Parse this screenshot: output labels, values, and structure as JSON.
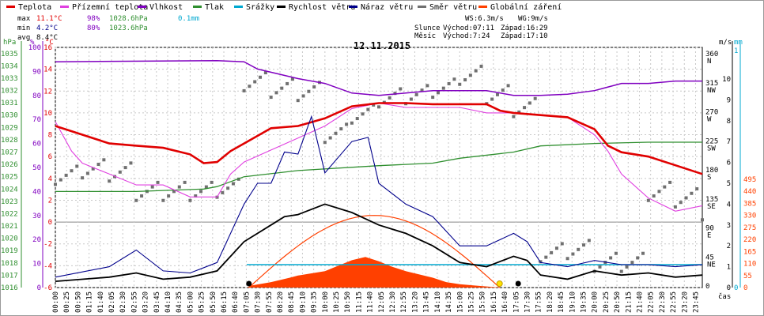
{
  "legend": [
    {
      "label": "Teplota",
      "color": "#e00000"
    },
    {
      "label": "Přízemní teplota",
      "color": "#e040e0"
    },
    {
      "label": "Vlhkost",
      "color": "#8000c0"
    },
    {
      "label": "Tlak",
      "color": "#2f8f2f"
    },
    {
      "label": "Srážky",
      "color": "#00a8d0"
    },
    {
      "label": "Rychlost větru",
      "color": "#000000"
    },
    {
      "label": "Náraz větru",
      "color": "#00008b"
    },
    {
      "label": "Směr větru",
      "color": "#707070"
    },
    {
      "label": "Globální záření",
      "color": "#ff4000"
    }
  ],
  "stats": {
    "max_label": "max",
    "max_temp": "11.1°C",
    "max_hum": "98%",
    "max_press": "1028.6hPa",
    "max_rain": "0.1mm",
    "min_label": "min",
    "min_temp": "4.2°C",
    "min_hum": "80%",
    "min_press": "1023.6hPa",
    "avg_label": "avg",
    "avg_temp": "8.4°C"
  },
  "wind_info": {
    "ws": "WS:6.3m/s",
    "wg": "WG:9m/s"
  },
  "sun_info": {
    "label": "Slunce",
    "rise": "Východ:07:11",
    "set": "Západ:16:29"
  },
  "moon_info": {
    "label": "Měsíc",
    "rise": "Východ:7:24",
    "set": "Západ:17:10"
  },
  "date": "12.11.2015",
  "axis_units": {
    "hpa": "hPa",
    "pct": "%",
    "degc": "°C",
    "ms": "m/s",
    "mm": "mm",
    "wm2": "W/m2",
    "time": "čas"
  },
  "colors": {
    "temp": "#e00000",
    "ground": "#e040e0",
    "hum": "#8000c0",
    "press": "#2f8f2f",
    "rain": "#00a8d0",
    "wind": "#000000",
    "gust": "#00008b",
    "dir": "#707070",
    "solar": "#ff4000",
    "grid": "#c8c8c8"
  },
  "chart_data": {
    "type": "line",
    "title": "12.11.2015",
    "x_range": [
      "00:00",
      "23:59"
    ],
    "y_axes": {
      "pressure_hpa": {
        "ticks": [
          "1016",
          "1017",
          "1018",
          "1019",
          "1020",
          "1021",
          "1022",
          "1023",
          "1024",
          "1025",
          "1026",
          "1027",
          "1028",
          "1029",
          "1030",
          "1031",
          "1032",
          "1033",
          "1034",
          "1035"
        ]
      },
      "humidity_pct": {
        "ticks": [
          "0",
          "10",
          "20",
          "30",
          "40",
          "50",
          "60",
          "70",
          "80",
          "90",
          "100"
        ]
      },
      "temperature_c": {
        "ticks": [
          "-6",
          "-4",
          "-2",
          "0",
          "2",
          "4",
          "6",
          "8",
          "10",
          "12",
          "14",
          "16"
        ]
      },
      "wind_dir": {
        "ticks": [
          "0",
          "45\nNE",
          "90\nE",
          "135\nSE",
          "180\nS",
          "225\nSW",
          "270\nW",
          "315\nNW",
          "360\nN"
        ]
      },
      "wind_ms": {
        "ticks": [
          "0",
          "1",
          "2",
          "3",
          "4",
          "5",
          "6",
          "7",
          "8",
          "9",
          "10"
        ]
      },
      "rain_mm": {
        "ticks": [
          "0",
          "1"
        ]
      },
      "solar_wm2": {
        "ticks": [
          "0",
          "55",
          "110",
          "165",
          "220",
          "275",
          "330",
          "385",
          "440",
          "495"
        ]
      }
    },
    "x_ticks": [
      "00:00",
      "00:25",
      "00:50",
      "01:15",
      "01:40",
      "02:05",
      "02:30",
      "02:55",
      "03:20",
      "03:45",
      "04:10",
      "04:35",
      "05:00",
      "05:25",
      "05:50",
      "06:15",
      "06:40",
      "07:05",
      "07:30",
      "07:55",
      "08:20",
      "08:45",
      "09:10",
      "09:35",
      "10:00",
      "10:25",
      "10:50",
      "11:15",
      "11:40",
      "12:05",
      "12:30",
      "12:55",
      "13:20",
      "13:45",
      "14:10",
      "14:35",
      "15:00",
      "15:25",
      "15:50",
      "16:15",
      "16:40",
      "17:05",
      "17:30",
      "17:55",
      "18:20",
      "18:45",
      "19:10",
      "19:35",
      "20:00",
      "20:25",
      "20:50",
      "21:15",
      "21:40",
      "22:05",
      "22:30",
      "22:55",
      "23:20",
      "23:45"
    ],
    "series": [
      {
        "name": "Teplota",
        "unit": "°C",
        "points": [
          [
            0,
            8.8
          ],
          [
            1,
            8
          ],
          [
            2,
            7.2
          ],
          [
            3,
            7
          ],
          [
            4,
            6.8
          ],
          [
            5,
            6.2
          ],
          [
            5.5,
            5.4
          ],
          [
            6,
            5.5
          ],
          [
            6.5,
            6.5
          ],
          [
            7,
            7.2
          ],
          [
            8,
            8.6
          ],
          [
            9,
            8.8
          ],
          [
            10,
            9.5
          ],
          [
            11,
            10.6
          ],
          [
            12,
            10.9
          ],
          [
            13,
            10.9
          ],
          [
            14,
            10.8
          ],
          [
            15,
            10.8
          ],
          [
            16,
            10.8
          ],
          [
            16.5,
            10.2
          ],
          [
            17,
            10
          ],
          [
            18,
            9.8
          ],
          [
            19,
            9.6
          ],
          [
            20,
            8.5
          ],
          [
            20.5,
            7
          ],
          [
            21,
            6.4
          ],
          [
            22,
            6
          ],
          [
            23,
            5.2
          ],
          [
            24,
            4.4
          ]
        ]
      },
      {
        "name": "Přízemní teplota",
        "unit": "°C",
        "points": [
          [
            0,
            9.2
          ],
          [
            0.6,
            6.5
          ],
          [
            1,
            5.4
          ],
          [
            2,
            4.4
          ],
          [
            3,
            3.4
          ],
          [
            4,
            3.4
          ],
          [
            5,
            2.3
          ],
          [
            6,
            2.3
          ],
          [
            6.5,
            4.4
          ],
          [
            7,
            5.5
          ],
          [
            8,
            6.6
          ],
          [
            9,
            7.7
          ],
          [
            10,
            8.8
          ],
          [
            11,
            10.4
          ],
          [
            12,
            10.9
          ],
          [
            13,
            10.5
          ],
          [
            14,
            10.5
          ],
          [
            15,
            10.5
          ],
          [
            16,
            10
          ],
          [
            17,
            10
          ],
          [
            18,
            9.8
          ],
          [
            19,
            9.6
          ],
          [
            20,
            8
          ],
          [
            20.5,
            6.5
          ],
          [
            21,
            4.4
          ],
          [
            22,
            2.2
          ],
          [
            23,
            1
          ],
          [
            24,
            1.5
          ]
        ]
      },
      {
        "name": "Vlhkost",
        "unit": "%",
        "points": [
          [
            0,
            94
          ],
          [
            6,
            94.5
          ],
          [
            7,
            94
          ],
          [
            7.5,
            91
          ],
          [
            9,
            87
          ],
          [
            10,
            85
          ],
          [
            11,
            81
          ],
          [
            12,
            80
          ],
          [
            13,
            81
          ],
          [
            14,
            82
          ],
          [
            15,
            82
          ],
          [
            16,
            82
          ],
          [
            17,
            80
          ],
          [
            18,
            80
          ],
          [
            19,
            80.5
          ],
          [
            20,
            82
          ],
          [
            21,
            85
          ],
          [
            22,
            85
          ],
          [
            23,
            86
          ],
          [
            24,
            86
          ]
        ]
      },
      {
        "name": "Tlak",
        "unit": "hPa",
        "points": [
          [
            0,
            1023.8
          ],
          [
            3,
            1023.8
          ],
          [
            5.5,
            1024
          ],
          [
            6,
            1024.2
          ],
          [
            7,
            1025
          ],
          [
            9,
            1025.5
          ],
          [
            12,
            1025.9
          ],
          [
            14,
            1026.1
          ],
          [
            15,
            1026.5
          ],
          [
            17,
            1027
          ],
          [
            18,
            1027.5
          ],
          [
            20,
            1027.7
          ],
          [
            22,
            1027.8
          ],
          [
            24,
            1027.8
          ]
        ]
      },
      {
        "name": "Rychlost větru",
        "unit": "m/s",
        "points": [
          [
            0,
            0.3
          ],
          [
            2,
            0.5
          ],
          [
            3,
            0.7
          ],
          [
            4,
            0.4
          ],
          [
            5,
            0.5
          ],
          [
            6,
            0.8
          ],
          [
            7,
            2.2
          ],
          [
            8,
            3
          ],
          [
            8.5,
            3.4
          ],
          [
            9,
            3.5
          ],
          [
            10,
            4
          ],
          [
            11,
            3.6
          ],
          [
            12,
            3
          ],
          [
            13,
            2.6
          ],
          [
            14,
            2
          ],
          [
            15,
            1.2
          ],
          [
            16,
            1
          ],
          [
            17,
            1.5
          ],
          [
            17.5,
            1.3
          ],
          [
            18,
            0.6
          ],
          [
            19,
            0.4
          ],
          [
            20,
            0.8
          ],
          [
            21,
            0.6
          ],
          [
            22,
            0.7
          ],
          [
            23,
            0.5
          ],
          [
            24,
            0.6
          ]
        ]
      },
      {
        "name": "Náraz větru",
        "unit": "m/s",
        "points": [
          [
            0,
            0.5
          ],
          [
            2,
            1
          ],
          [
            3,
            1.8
          ],
          [
            4,
            0.8
          ],
          [
            5,
            0.7
          ],
          [
            6,
            1.2
          ],
          [
            7,
            4
          ],
          [
            7.5,
            5
          ],
          [
            8,
            5
          ],
          [
            8.5,
            6.5
          ],
          [
            9,
            6.4
          ],
          [
            9.5,
            8.2
          ],
          [
            10,
            5.5
          ],
          [
            11,
            7
          ],
          [
            11.6,
            7.2
          ],
          [
            12,
            5
          ],
          [
            13,
            4
          ],
          [
            14,
            3.4
          ],
          [
            15,
            2
          ],
          [
            16,
            2
          ],
          [
            17,
            2.6
          ],
          [
            17.5,
            2.2
          ],
          [
            18,
            1.2
          ],
          [
            19,
            1
          ],
          [
            20,
            1.3
          ],
          [
            21,
            1.1
          ],
          [
            22,
            1.1
          ],
          [
            23,
            1
          ],
          [
            24,
            1.1
          ]
        ]
      },
      {
        "name": "Globální záření",
        "unit": "W/m2",
        "points": [
          [
            7.1,
            0
          ],
          [
            7.3,
            10
          ],
          [
            8,
            25
          ],
          [
            8.7,
            45
          ],
          [
            9,
            55
          ],
          [
            9.5,
            65
          ],
          [
            10,
            75
          ],
          [
            10.5,
            100
          ],
          [
            11,
            125
          ],
          [
            11.5,
            140
          ],
          [
            12,
            120
          ],
          [
            12.5,
            95
          ],
          [
            13,
            75
          ],
          [
            13.5,
            60
          ],
          [
            14,
            45
          ],
          [
            14.5,
            25
          ],
          [
            15,
            15
          ],
          [
            15.5,
            10
          ],
          [
            16,
            5
          ],
          [
            16.5,
            0
          ]
        ]
      },
      {
        "name": "Směr větru",
        "unit": "°",
        "points": [
          [
            0,
            175
          ],
          [
            1,
            185
          ],
          [
            2,
            180
          ],
          [
            3,
            150
          ],
          [
            4,
            150
          ],
          [
            5,
            150
          ],
          [
            6,
            155
          ],
          [
            7,
            320
          ],
          [
            8,
            310
          ],
          [
            9,
            305
          ],
          [
            10,
            240
          ],
          [
            11,
            270
          ],
          [
            12,
            295
          ],
          [
            13,
            300
          ],
          [
            14,
            310
          ],
          [
            15,
            330
          ],
          [
            16,
            300
          ],
          [
            17,
            280
          ],
          [
            18,
            55
          ],
          [
            19,
            60
          ],
          [
            20,
            40
          ],
          [
            21,
            40
          ],
          [
            22,
            150
          ],
          [
            23,
            140
          ],
          [
            24,
            120
          ]
        ]
      }
    ]
  }
}
